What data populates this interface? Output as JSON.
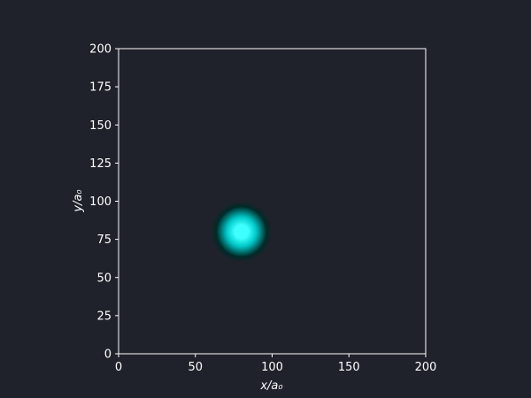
{
  "chart_data": {
    "type": "heatmap",
    "xlabel": "x/a₀",
    "ylabel": "y/a₀",
    "xlim": [
      0,
      200
    ],
    "ylim": [
      0,
      200
    ],
    "x_ticks": [
      0,
      50,
      100,
      150,
      200
    ],
    "y_ticks": [
      0,
      25,
      50,
      75,
      100,
      125,
      150,
      175,
      200
    ],
    "grid": false,
    "legend": "none",
    "density_blob": {
      "center_x": 80,
      "center_y": 80,
      "radius": 20,
      "core_radius": 5,
      "colors": {
        "core": "#3fffff",
        "mid": "#00c8c8",
        "edge": "#002a28",
        "background": "#1f222b"
      }
    },
    "frame_color": "#ffffff",
    "text_color": "#ffffff"
  }
}
